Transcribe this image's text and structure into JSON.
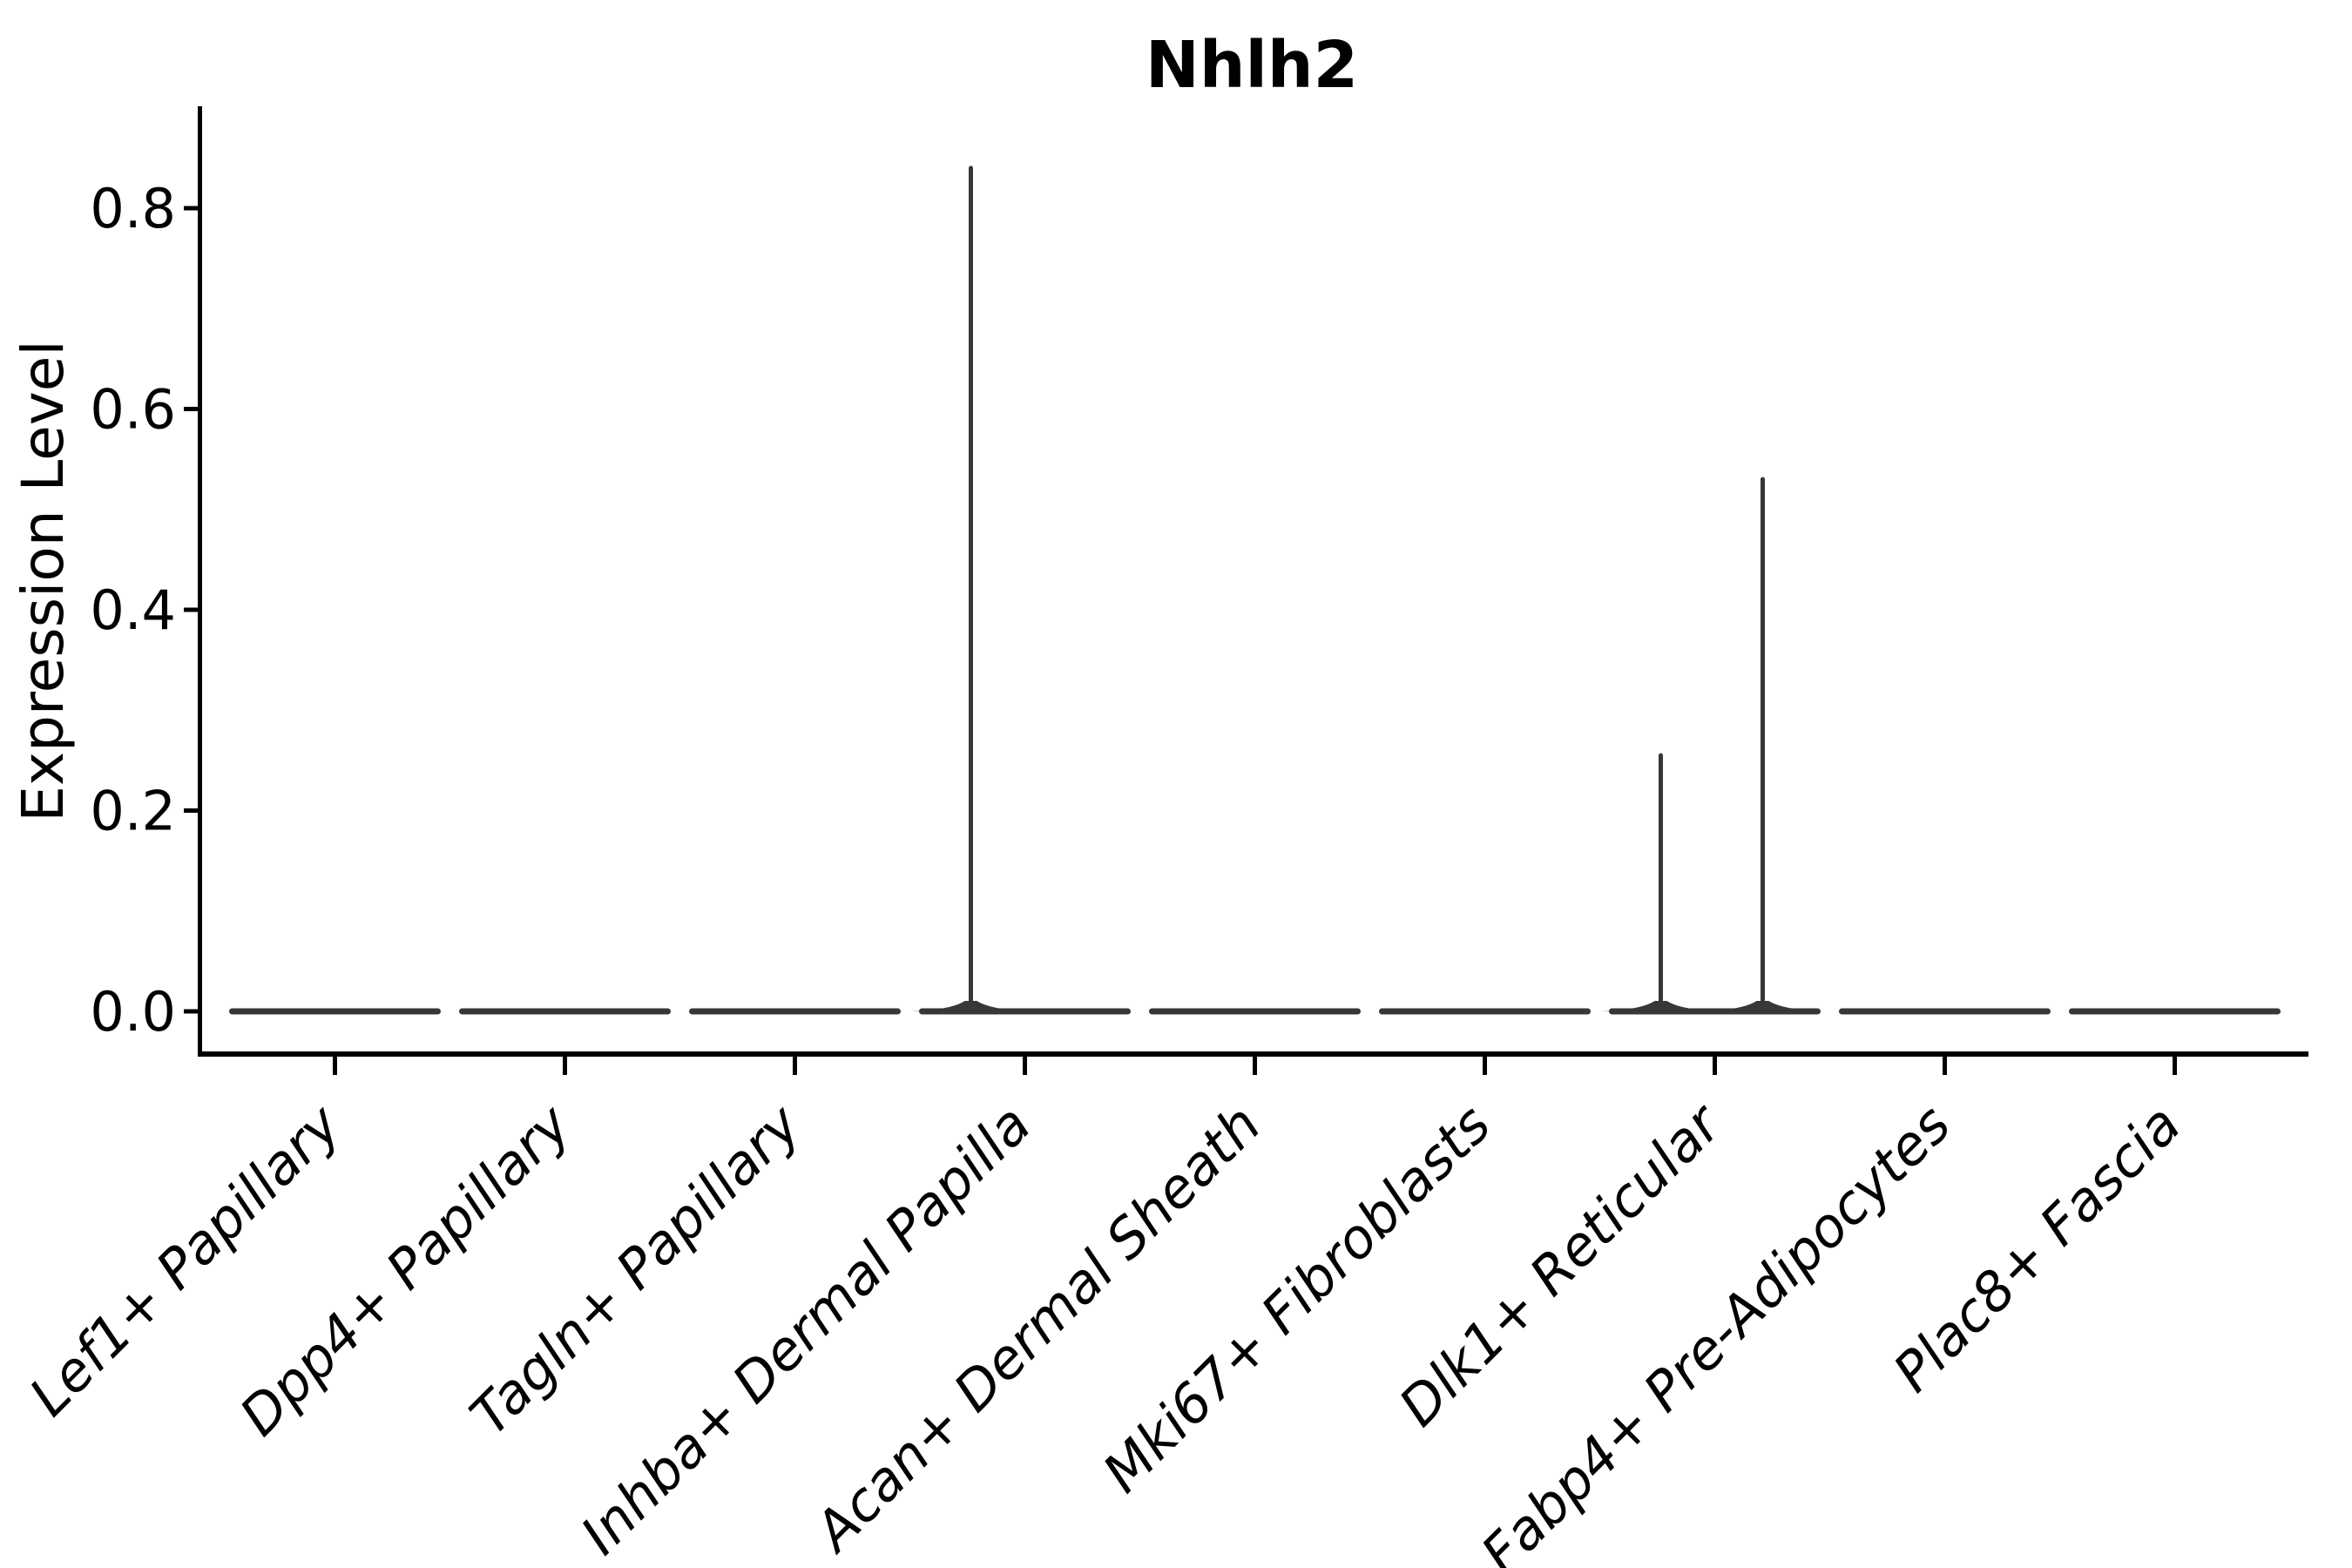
{
  "title": "Nhlh2",
  "axes": {
    "ylabel": "Expression Level"
  },
  "chart_data": {
    "type": "violin",
    "title": "Nhlh2",
    "xlabel": "",
    "ylabel": "Expression Level",
    "categories": [
      "Lef1+ Papillary",
      "Dpp4+ Papillary",
      "Tagln+ Papillary",
      "Inhba+ Dermal Papilla",
      "Acan+ Dermal Sheath",
      "Mki67+ Fibroblasts",
      "Dlk1+ Reticular",
      "Fabp4+ Pre-Adipocytes",
      "Plac8+ Fascia"
    ],
    "yticks": [
      0.0,
      0.2,
      0.4,
      0.6,
      0.8
    ],
    "ytick_labels": [
      "0.0",
      "0.2",
      "0.4",
      "0.6",
      "0.8"
    ],
    "ylim": [
      -0.043,
      0.9
    ],
    "grid": false,
    "legend_position": "none",
    "xticklabel_rotation_deg": 45,
    "violins": [
      {
        "category": "Lef1+ Papillary",
        "body_value": 0,
        "spikes": []
      },
      {
        "category": "Dpp4+ Papillary",
        "body_value": 0,
        "spikes": []
      },
      {
        "category": "Tagln+ Papillary",
        "body_value": 0,
        "spikes": []
      },
      {
        "category": "Inhba+ Dermal Papilla",
        "body_value": 0,
        "spikes": [
          {
            "max_value": 0.84,
            "offset": "left"
          }
        ]
      },
      {
        "category": "Acan+ Dermal Sheath",
        "body_value": 0,
        "spikes": []
      },
      {
        "category": "Mki67+ Fibroblasts",
        "body_value": 0,
        "spikes": []
      },
      {
        "category": "Dlk1+ Reticular",
        "body_value": 0,
        "spikes": [
          {
            "max_value": 0.255,
            "offset": "left"
          },
          {
            "max_value": 0.53,
            "offset": "right"
          }
        ]
      },
      {
        "category": "Fabp4+ Pre-Adipocytes",
        "body_value": 0,
        "spikes": []
      },
      {
        "category": "Plac8+ Fascia",
        "body_value": 0,
        "spikes": []
      }
    ],
    "colors": {
      "violin": "#373737",
      "axis": "#000000",
      "text": "#000000",
      "background": "#ffffff"
    }
  }
}
